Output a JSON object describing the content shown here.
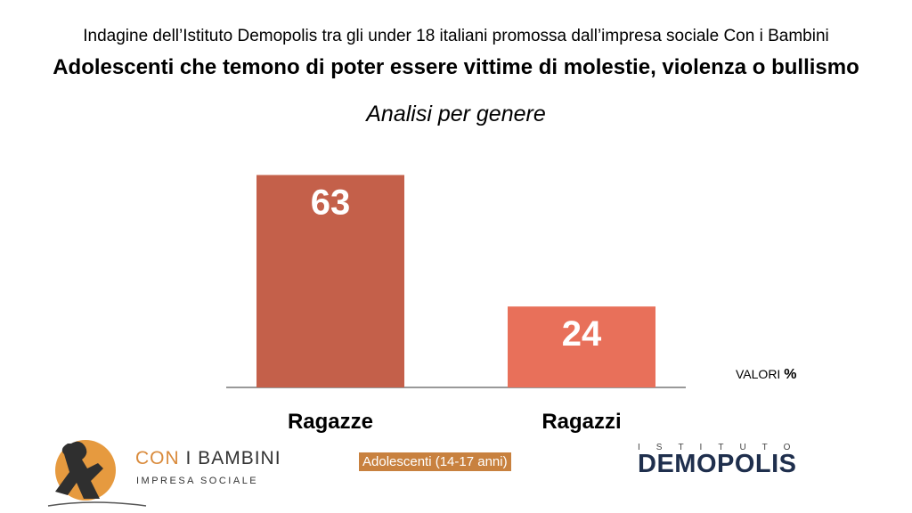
{
  "header": {
    "survey_line": "Indagine dell’Istituto Demopolis tra gli under 18 italiani promossa dall’impresa sociale Con i Bambini",
    "title": "Adolescenti che temono di poter essere vittime di molestie, violenza o bullismo",
    "analysis": "Analisi per genere"
  },
  "chart_data": {
    "type": "bar",
    "categories": [
      "Ragazze",
      "Ragazzi"
    ],
    "values": [
      63,
      24
    ],
    "colors": [
      "#c4604a",
      "#e8705a"
    ],
    "ylim": [
      0,
      70
    ],
    "grid": false,
    "unit_note": "VALORI",
    "unit_symbol": "%"
  },
  "footer": {
    "sample": "Adolescenti (14-17 anni)",
    "left_logo": {
      "word1": "CON",
      "word2": "I BAMBINI",
      "sub": "IMPRESA SOCIALE",
      "accent": "#d98a3b"
    },
    "right_logo": {
      "top": "ISTITUTO",
      "main": "DEMOPOLIS",
      "color": "#1f2f4d"
    }
  }
}
